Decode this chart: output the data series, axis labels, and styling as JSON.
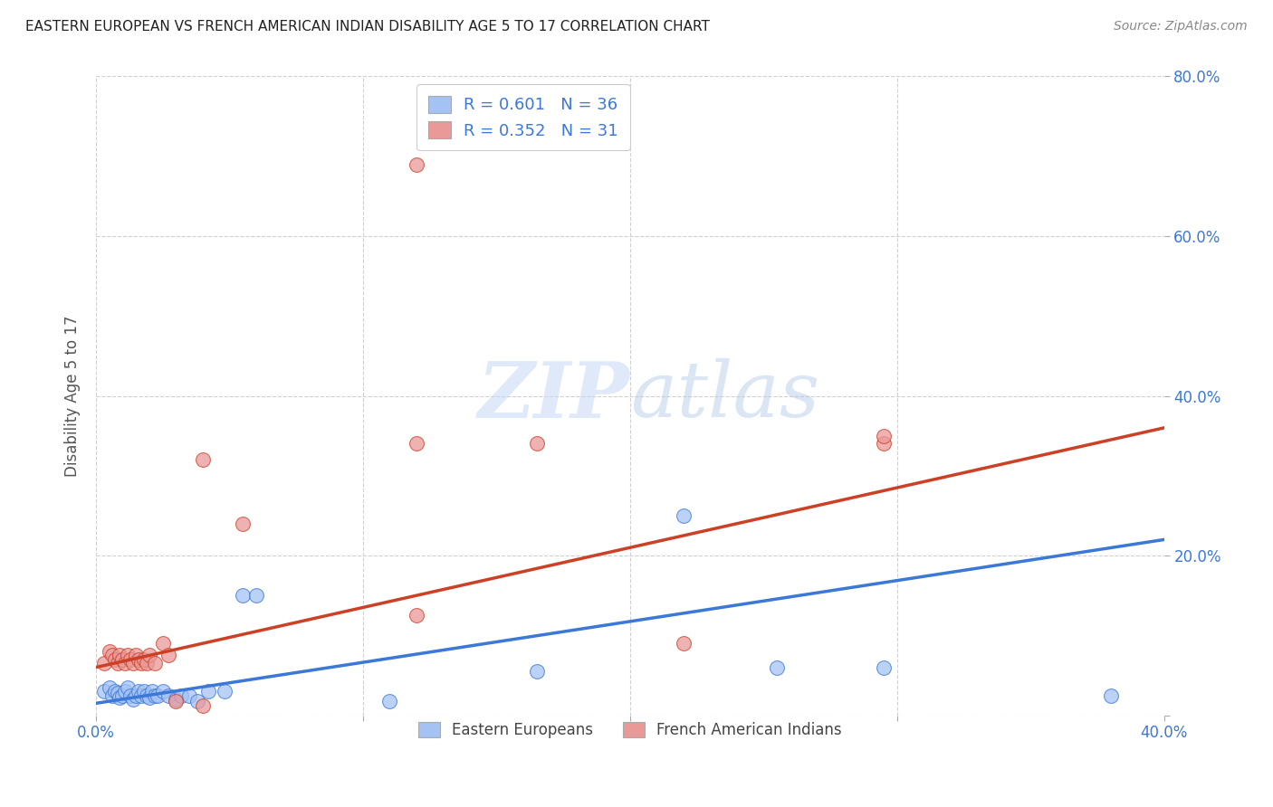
{
  "title": "EASTERN EUROPEAN VS FRENCH AMERICAN INDIAN DISABILITY AGE 5 TO 17 CORRELATION CHART",
  "source": "Source: ZipAtlas.com",
  "ylabel": "Disability Age 5 to 17",
  "xlim": [
    0.0,
    0.4
  ],
  "ylim": [
    0.0,
    0.8
  ],
  "xticks": [
    0.0,
    0.1,
    0.2,
    0.3,
    0.4
  ],
  "xtick_labels": [
    "0.0%",
    "",
    "",
    "",
    "40.0%"
  ],
  "yticks_right": [
    0.0,
    0.2,
    0.4,
    0.6,
    0.8
  ],
  "ytick_labels_right": [
    "",
    "20.0%",
    "40.0%",
    "60.0%",
    "80.0%"
  ],
  "blue_color": "#a4c2f4",
  "pink_color": "#ea9999",
  "blue_line_color": "#3c78d8",
  "pink_line_color": "#cc4125",
  "legend_R_blue": "0.601",
  "legend_N_blue": "36",
  "legend_R_pink": "0.352",
  "legend_N_pink": "31",
  "blue_scatter_x": [
    0.003,
    0.005,
    0.006,
    0.007,
    0.008,
    0.009,
    0.01,
    0.011,
    0.012,
    0.013,
    0.014,
    0.015,
    0.016,
    0.017,
    0.018,
    0.019,
    0.02,
    0.021,
    0.022,
    0.023,
    0.025,
    0.027,
    0.03,
    0.032,
    0.035,
    0.038,
    0.042,
    0.048,
    0.055,
    0.06,
    0.165,
    0.22,
    0.255,
    0.295,
    0.38,
    0.11
  ],
  "blue_scatter_y": [
    0.03,
    0.035,
    0.025,
    0.03,
    0.028,
    0.022,
    0.025,
    0.03,
    0.035,
    0.025,
    0.02,
    0.025,
    0.03,
    0.025,
    0.03,
    0.025,
    0.022,
    0.03,
    0.025,
    0.025,
    0.03,
    0.025,
    0.02,
    0.025,
    0.025,
    0.018,
    0.03,
    0.03,
    0.15,
    0.15,
    0.055,
    0.25,
    0.06,
    0.06,
    0.025,
    0.018
  ],
  "pink_scatter_x": [
    0.003,
    0.005,
    0.006,
    0.007,
    0.008,
    0.009,
    0.01,
    0.011,
    0.012,
    0.013,
    0.014,
    0.015,
    0.016,
    0.017,
    0.018,
    0.019,
    0.02,
    0.022,
    0.025,
    0.027,
    0.03,
    0.04,
    0.055,
    0.165,
    0.22,
    0.295,
    0.12,
    0.12,
    0.295,
    0.04,
    0.12
  ],
  "pink_scatter_y": [
    0.065,
    0.08,
    0.075,
    0.07,
    0.065,
    0.075,
    0.07,
    0.065,
    0.075,
    0.07,
    0.065,
    0.075,
    0.07,
    0.065,
    0.07,
    0.065,
    0.075,
    0.065,
    0.09,
    0.075,
    0.018,
    0.012,
    0.24,
    0.34,
    0.09,
    0.34,
    0.125,
    0.34,
    0.35,
    0.32,
    0.69
  ],
  "blue_line_x": [
    0.0,
    0.4
  ],
  "blue_line_y": [
    0.015,
    0.22
  ],
  "pink_line_x": [
    0.0,
    0.4
  ],
  "pink_line_y": [
    0.06,
    0.36
  ],
  "watermark_zip": "ZIP",
  "watermark_atlas": "atlas",
  "background_color": "#ffffff",
  "grid_color": "#d0d0d0",
  "axis_tick_color": "#3c78d8",
  "legend_text_color": "#3c78d8"
}
